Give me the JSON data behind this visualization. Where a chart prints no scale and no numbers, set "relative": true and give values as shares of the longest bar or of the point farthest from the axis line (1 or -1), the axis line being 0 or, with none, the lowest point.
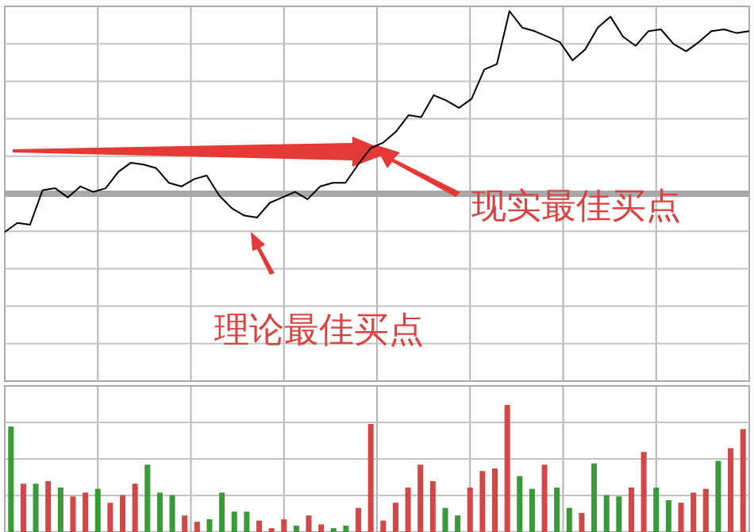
{
  "chart_data": [
    {
      "type": "line",
      "relative": true,
      "grid": true,
      "color": "#000000",
      "categories": [
        null,
        null,
        null,
        null,
        null,
        null,
        null,
        null,
        null,
        null,
        null,
        null,
        null,
        null,
        null,
        null,
        null,
        null,
        null,
        null,
        null,
        null,
        null,
        null,
        null,
        null,
        null,
        null,
        null,
        null,
        null,
        null,
        null,
        null,
        null,
        null,
        null,
        null,
        null,
        null,
        null,
        null,
        null,
        null,
        null,
        null,
        null,
        null,
        null,
        null,
        null,
        null,
        null,
        null,
        null,
        null,
        null,
        null,
        null,
        null
      ],
      "values": [
        -0.21,
        -0.16,
        -0.17,
        0.02,
        0.03,
        -0.02,
        0.04,
        0.01,
        0.03,
        0.12,
        0.17,
        0.16,
        0.14,
        0.06,
        0.04,
        0.08,
        0.1,
        -0.01,
        -0.08,
        -0.12,
        -0.13,
        -0.05,
        -0.02,
        0.01,
        -0.03,
        0.04,
        0.06,
        0.06,
        0.16,
        0.25,
        0.28,
        0.34,
        0.43,
        0.42,
        0.54,
        0.51,
        0.47,
        0.52,
        0.68,
        0.71,
        1.0,
        0.91,
        0.89,
        0.86,
        0.83,
        0.73,
        0.79,
        0.91,
        0.97,
        0.86,
        0.81,
        0.89,
        0.9,
        0.82,
        0.78,
        0.83,
        0.89,
        0.9,
        0.88,
        0.89
      ],
      "annotations": [
        "现实最佳买点",
        "理论最佳买点"
      ]
    },
    {
      "type": "bar",
      "relative": true,
      "grid": true,
      "categories": [
        null,
        null,
        null,
        null,
        null,
        null,
        null,
        null,
        null,
        null,
        null,
        null,
        null,
        null,
        null,
        null,
        null,
        null,
        null,
        null,
        null,
        null,
        null,
        null,
        null,
        null,
        null,
        null,
        null,
        null,
        null,
        null,
        null,
        null,
        null,
        null,
        null,
        null,
        null,
        null,
        null,
        null,
        null,
        null,
        null,
        null,
        null,
        null,
        null,
        null,
        null,
        null,
        null,
        null,
        null,
        null,
        null,
        null,
        null,
        null
      ],
      "values": [
        0.83,
        0.38,
        0.38,
        0.4,
        0.35,
        0.28,
        0.31,
        0.34,
        0.23,
        0.29,
        0.38,
        0.53,
        0.31,
        0.29,
        0.13,
        0.08,
        0.1,
        0.31,
        0.16,
        0.16,
        0.09,
        0.03,
        0.1,
        0.05,
        0.13,
        0.06,
        0.03,
        0.05,
        0.19,
        0.85,
        0.09,
        0.23,
        0.35,
        0.53,
        0.4,
        0.19,
        0.13,
        0.35,
        0.48,
        0.5,
        1.0,
        0.44,
        0.34,
        0.53,
        0.35,
        0.19,
        0.15,
        0.54,
        0.29,
        0.28,
        0.35,
        0.63,
        0.35,
        0.25,
        0.23,
        0.31,
        0.34,
        0.56,
        0.66,
        0.81
      ],
      "colors": [
        "#3a9a3a",
        "#d04848",
        "#3a9a3a",
        "#d04848",
        "#3a9a3a",
        "#d04848",
        "#d04848",
        "#3a9a3a",
        "#d04848",
        "#d04848",
        "#d04848",
        "#3a9a3a",
        "#3a9a3a",
        "#3a9a3a",
        "#d04848",
        "#d04848",
        "#3a9a3a",
        "#3a9a3a",
        "#3a9a3a",
        "#3a9a3a",
        "#d04848",
        "#d04848",
        "#d04848",
        "#3a9a3a",
        "#d04848",
        "#d04848",
        "#3a9a3a",
        "#3a9a3a",
        "#d04848",
        "#d04848",
        "#d04848",
        "#d04848",
        "#d04848",
        "#d04848",
        "#d04848",
        "#3a9a3a",
        "#3a9a3a",
        "#d04848",
        "#d04848",
        "#d04848",
        "#d04848",
        "#3a9a3a",
        "#3a9a3a",
        "#d04848",
        "#3a9a3a",
        "#3a9a3a",
        "#d04848",
        "#3a9a3a",
        "#3a9a3a",
        "#3a9a3a",
        "#d04848",
        "#d04848",
        "#3a9a3a",
        "#3a9a3a",
        "#d04848",
        "#d04848",
        "#d04848",
        "#3a9a3a",
        "#d04848",
        "#d04848"
      ]
    }
  ]
}
